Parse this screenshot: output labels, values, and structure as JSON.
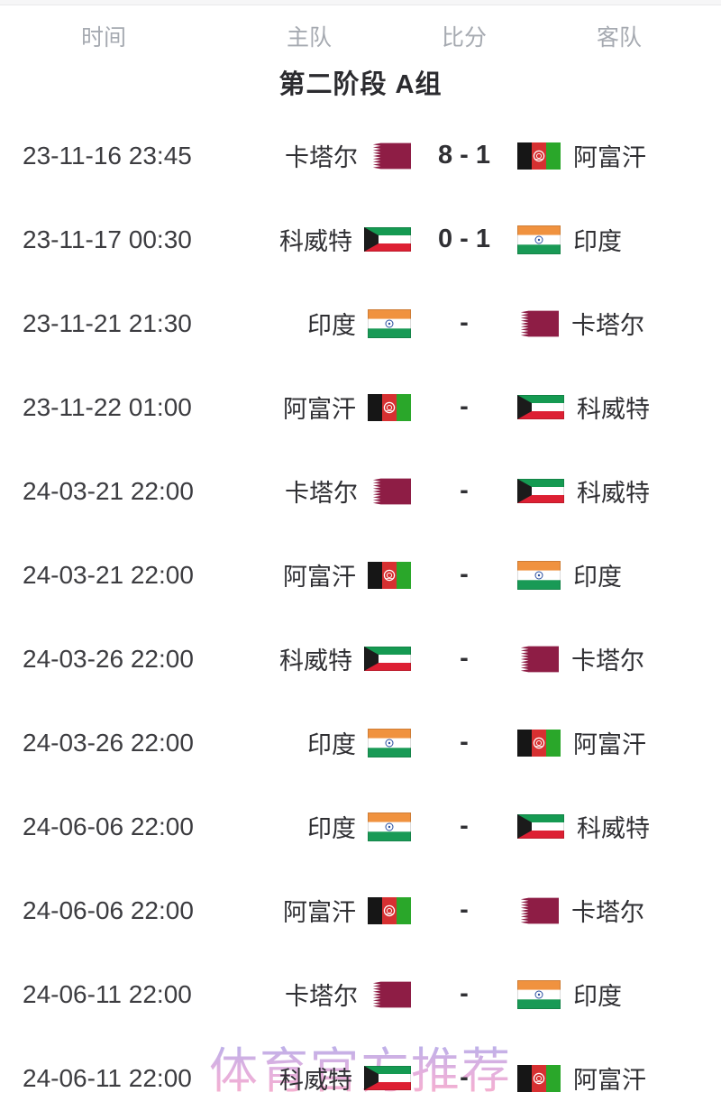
{
  "header": {
    "columns": [
      "时间",
      "主队",
      "比分",
      "客队"
    ]
  },
  "group_title": "第二阶段 A组",
  "watermark": "体育官方推荐",
  "colors": {
    "qatar_maroon": "#8e1d45",
    "kuwait_green": "#159a52",
    "kuwait_red": "#dd2033",
    "kuwait_black": "#1b1b1b",
    "india_saffron": "#f0923f",
    "india_white": "#ffffff",
    "india_green": "#199a56",
    "india_navy": "#2a4fa0",
    "afghan_black": "#161616",
    "afghan_red": "#d63031",
    "afghan_green": "#2aa72a",
    "flag_border": "rgba(0,0,0,0.14)",
    "watermark_top": "#b4a8e8",
    "watermark_bottom": "#f8a8c8"
  },
  "matches": [
    {
      "time": "23-11-16 23:45",
      "home": "卡塔尔",
      "home_flag": "qatar",
      "score": "8 - 1",
      "away": "阿富汗",
      "away_flag": "afghanistan"
    },
    {
      "time": "23-11-17 00:30",
      "home": "科威特",
      "home_flag": "kuwait",
      "score": "0 - 1",
      "away": "印度",
      "away_flag": "india"
    },
    {
      "time": "23-11-21 21:30",
      "home": "印度",
      "home_flag": "india",
      "score": "-",
      "away": "卡塔尔",
      "away_flag": "qatar"
    },
    {
      "time": "23-11-22 01:00",
      "home": "阿富汗",
      "home_flag": "afghanistan",
      "score": "-",
      "away": "科威特",
      "away_flag": "kuwait"
    },
    {
      "time": "24-03-21 22:00",
      "home": "卡塔尔",
      "home_flag": "qatar",
      "score": "-",
      "away": "科威特",
      "away_flag": "kuwait"
    },
    {
      "time": "24-03-21 22:00",
      "home": "阿富汗",
      "home_flag": "afghanistan",
      "score": "-",
      "away": "印度",
      "away_flag": "india"
    },
    {
      "time": "24-03-26 22:00",
      "home": "科威特",
      "home_flag": "kuwait",
      "score": "-",
      "away": "卡塔尔",
      "away_flag": "qatar"
    },
    {
      "time": "24-03-26 22:00",
      "home": "印度",
      "home_flag": "india",
      "score": "-",
      "away": "阿富汗",
      "away_flag": "afghanistan"
    },
    {
      "time": "24-06-06 22:00",
      "home": "印度",
      "home_flag": "india",
      "score": "-",
      "away": "科威特",
      "away_flag": "kuwait"
    },
    {
      "time": "24-06-06 22:00",
      "home": "阿富汗",
      "home_flag": "afghanistan",
      "score": "-",
      "away": "卡塔尔",
      "away_flag": "qatar"
    },
    {
      "time": "24-06-11 22:00",
      "home": "卡塔尔",
      "home_flag": "qatar",
      "score": "-",
      "away": "印度",
      "away_flag": "india"
    },
    {
      "time": "24-06-11 22:00",
      "home": "科威特",
      "home_flag": "kuwait",
      "score": "-",
      "away": "阿富汗",
      "away_flag": "afghanistan"
    }
  ]
}
